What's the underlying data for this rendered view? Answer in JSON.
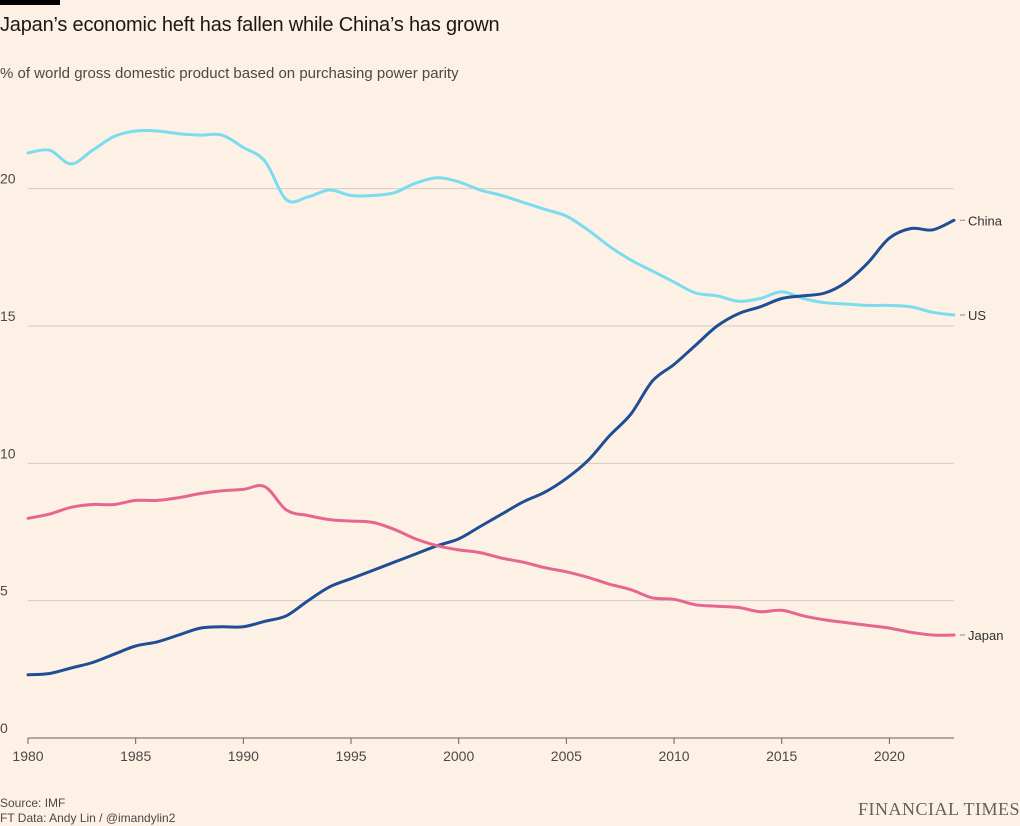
{
  "title": "Japan’s economic heft has fallen while China’s has grown",
  "subtitle": "% of world gross domestic product based on purchasing power parity",
  "source": "Source: IMF",
  "credit": "FT Data: Andy Lin / @imandylin2",
  "brand": "FINANCIAL TIMES",
  "chart_data": {
    "type": "line",
    "title": "Japan’s economic heft has fallen while China’s has grown",
    "subtitle": "% of world gross domestic product based on purchasing power parity",
    "xlabel": "",
    "ylabel": "",
    "xlim": [
      1980,
      2023
    ],
    "ylim": [
      0,
      22.5
    ],
    "x_ticks": [
      1980,
      1985,
      1990,
      1995,
      2000,
      2005,
      2010,
      2015,
      2020
    ],
    "y_ticks": [
      0,
      5,
      10,
      15,
      20
    ],
    "x_tick_labels": [
      "1980",
      "1985",
      "1990",
      "1995",
      "2000",
      "2005",
      "2010",
      "2015",
      "2020"
    ],
    "y_tick_labels": [
      "0",
      "5",
      "10",
      "15",
      "20"
    ],
    "grid": "horizontal",
    "legend": "inline labels at line ends",
    "x": [
      1980,
      1981,
      1982,
      1983,
      1984,
      1985,
      1986,
      1987,
      1988,
      1989,
      1990,
      1991,
      1992,
      1993,
      1994,
      1995,
      1996,
      1997,
      1998,
      1999,
      2000,
      2001,
      2002,
      2003,
      2004,
      2005,
      2006,
      2007,
      2008,
      2009,
      2010,
      2011,
      2012,
      2013,
      2014,
      2015,
      2016,
      2017,
      2018,
      2019,
      2020,
      2021,
      2022,
      2023
    ],
    "series": [
      {
        "name": "US",
        "color": "#7bdcf0",
        "values": [
          21.3,
          21.4,
          20.9,
          21.4,
          21.9,
          22.1,
          22.1,
          22.0,
          21.95,
          21.95,
          21.5,
          21.0,
          19.6,
          19.7,
          19.95,
          19.75,
          19.75,
          19.85,
          20.2,
          20.4,
          20.25,
          19.95,
          19.75,
          19.5,
          19.25,
          19.0,
          18.5,
          17.9,
          17.4,
          17.0,
          16.6,
          16.2,
          16.1,
          15.9,
          16.0,
          16.25,
          16.0,
          15.85,
          15.8,
          15.75,
          15.75,
          15.7,
          15.5,
          15.4
        ]
      },
      {
        "name": "China",
        "color": "#1f4e96",
        "values": [
          2.3,
          2.35,
          2.55,
          2.75,
          3.05,
          3.35,
          3.5,
          3.75,
          4.0,
          4.05,
          4.05,
          4.25,
          4.45,
          5.0,
          5.5,
          5.8,
          6.1,
          6.4,
          6.7,
          7.0,
          7.25,
          7.7,
          8.15,
          8.6,
          8.95,
          9.45,
          10.1,
          11.0,
          11.8,
          13.0,
          13.6,
          14.3,
          15.0,
          15.45,
          15.7,
          16.0,
          16.1,
          16.2,
          16.6,
          17.3,
          18.2,
          18.55,
          18.5,
          18.85
        ]
      },
      {
        "name": "Japan",
        "color": "#e6668f",
        "values": [
          8.0,
          8.15,
          8.4,
          8.5,
          8.5,
          8.65,
          8.65,
          8.75,
          8.9,
          9.0,
          9.05,
          9.15,
          8.3,
          8.1,
          7.95,
          7.9,
          7.85,
          7.6,
          7.25,
          7.0,
          6.85,
          6.75,
          6.55,
          6.4,
          6.2,
          6.05,
          5.85,
          5.6,
          5.4,
          5.1,
          5.05,
          4.85,
          4.8,
          4.75,
          4.6,
          4.65,
          4.45,
          4.3,
          4.2,
          4.1,
          4.0,
          3.85,
          3.75,
          3.75
        ]
      }
    ]
  }
}
